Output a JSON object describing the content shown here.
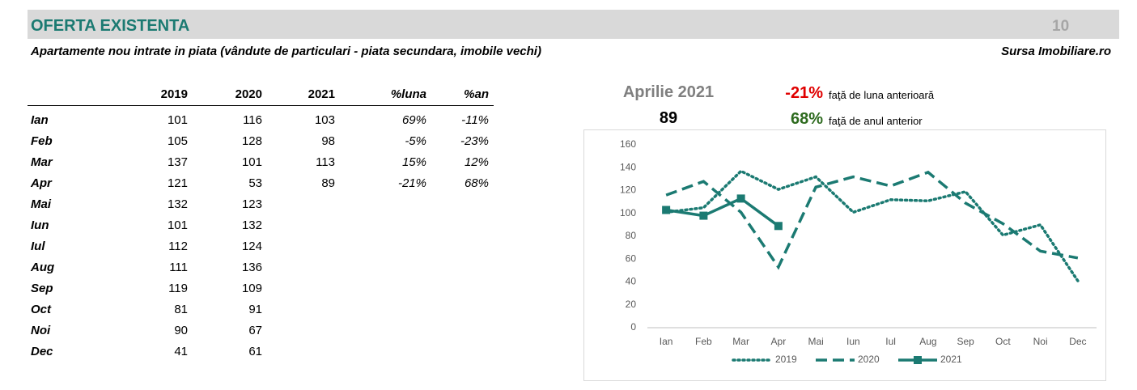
{
  "header": {
    "title": "OFERTA EXISTENTA",
    "page_number": "10",
    "subtitle": "Apartamente nou intrate in piata (vândute de particulari - piata secundara, imobile vechi)",
    "source": "Sursa Imobiliare.ro"
  },
  "table": {
    "columns": [
      "2019",
      "2020",
      "2021",
      "%luna",
      "%an"
    ],
    "rows": [
      [
        "Ian",
        "101",
        "116",
        "103",
        "69%",
        "-11%"
      ],
      [
        "Feb",
        "105",
        "128",
        "98",
        "-5%",
        "-23%"
      ],
      [
        "Mar",
        "137",
        "101",
        "113",
        "15%",
        "12%"
      ],
      [
        "Apr",
        "121",
        "53",
        "89",
        "-21%",
        "68%"
      ],
      [
        "Mai",
        "132",
        "123",
        null,
        null,
        null
      ],
      [
        "Iun",
        "101",
        "132",
        null,
        null,
        null
      ],
      [
        "Iul",
        "112",
        "124",
        null,
        null,
        null
      ],
      [
        "Aug",
        "111",
        "136",
        null,
        null,
        null
      ],
      [
        "Sep",
        "119",
        "109",
        null,
        null,
        null
      ],
      [
        "Oct",
        "81",
        "91",
        null,
        null,
        null
      ],
      [
        "Noi",
        "90",
        "67",
        null,
        null,
        null
      ],
      [
        "Dec",
        "41",
        "61",
        null,
        null,
        null
      ]
    ]
  },
  "summary": {
    "period": "Aprilie 2021",
    "value": "89",
    "mom": "-21%",
    "mom_text": "faţă de luna anterioară",
    "yoy": "68%",
    "yoy_text": "faţă de anul anterior"
  },
  "chart_data": {
    "type": "line",
    "categories": [
      "Ian",
      "Feb",
      "Mar",
      "Apr",
      "Mai",
      "Iun",
      "Iul",
      "Aug",
      "Sep",
      "Oct",
      "Noi",
      "Dec"
    ],
    "series": [
      {
        "name": "2019",
        "color": "#1b7a72",
        "style": "dotted",
        "values": [
          101,
          105,
          137,
          121,
          132,
          101,
          112,
          111,
          119,
          81,
          90,
          41
        ]
      },
      {
        "name": "2020",
        "color": "#1b7a72",
        "style": "dashed",
        "values": [
          116,
          128,
          101,
          53,
          123,
          132,
          124,
          136,
          109,
          91,
          67,
          61
        ]
      },
      {
        "name": "2021",
        "color": "#1b7a72",
        "style": "solid",
        "markers": true,
        "values": [
          103,
          98,
          113,
          89,
          null,
          null,
          null,
          null,
          null,
          null,
          null,
          null
        ]
      }
    ],
    "ylim": [
      0,
      160
    ],
    "yticks": [
      0,
      20,
      40,
      60,
      80,
      100,
      120,
      140,
      160
    ],
    "legend": "bottom"
  }
}
